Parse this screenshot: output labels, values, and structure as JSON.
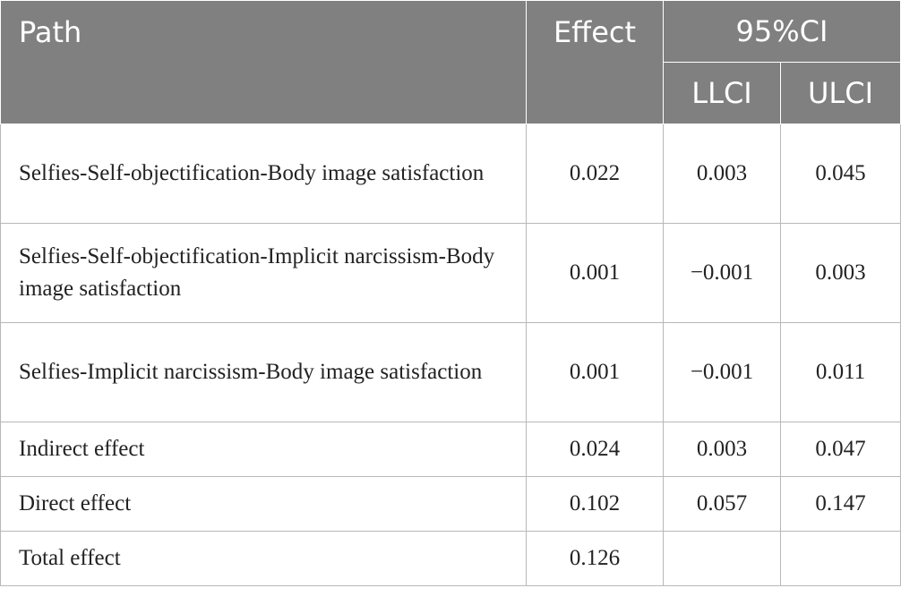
{
  "header": {
    "path": "Path",
    "effect": "Effect",
    "ci": "95%CI",
    "llci": "LLCI",
    "ulci": "ULCI"
  },
  "rows": [
    {
      "path": "Selfies-Self-objectification-Body image satisfaction",
      "effect": "0.022",
      "llci": "0.003",
      "ulci": "0.045"
    },
    {
      "path": "Selfies-Self-objectification-Implicit narcissism-Body image satisfaction",
      "effect": "0.001",
      "llci": "−0.001",
      "ulci": "0.003"
    },
    {
      "path": "Selfies-Implicit narcissism-Body image satisfaction",
      "effect": "0.001",
      "llci": "−0.001",
      "ulci": "0.011"
    },
    {
      "path": "Indirect effect",
      "effect": "0.024",
      "llci": "0.003",
      "ulci": "0.047"
    },
    {
      "path": "Direct effect",
      "effect": "0.102",
      "llci": "0.057",
      "ulci": "0.147"
    },
    {
      "path": "Total effect",
      "effect": "0.126",
      "llci": "",
      "ulci": ""
    }
  ]
}
